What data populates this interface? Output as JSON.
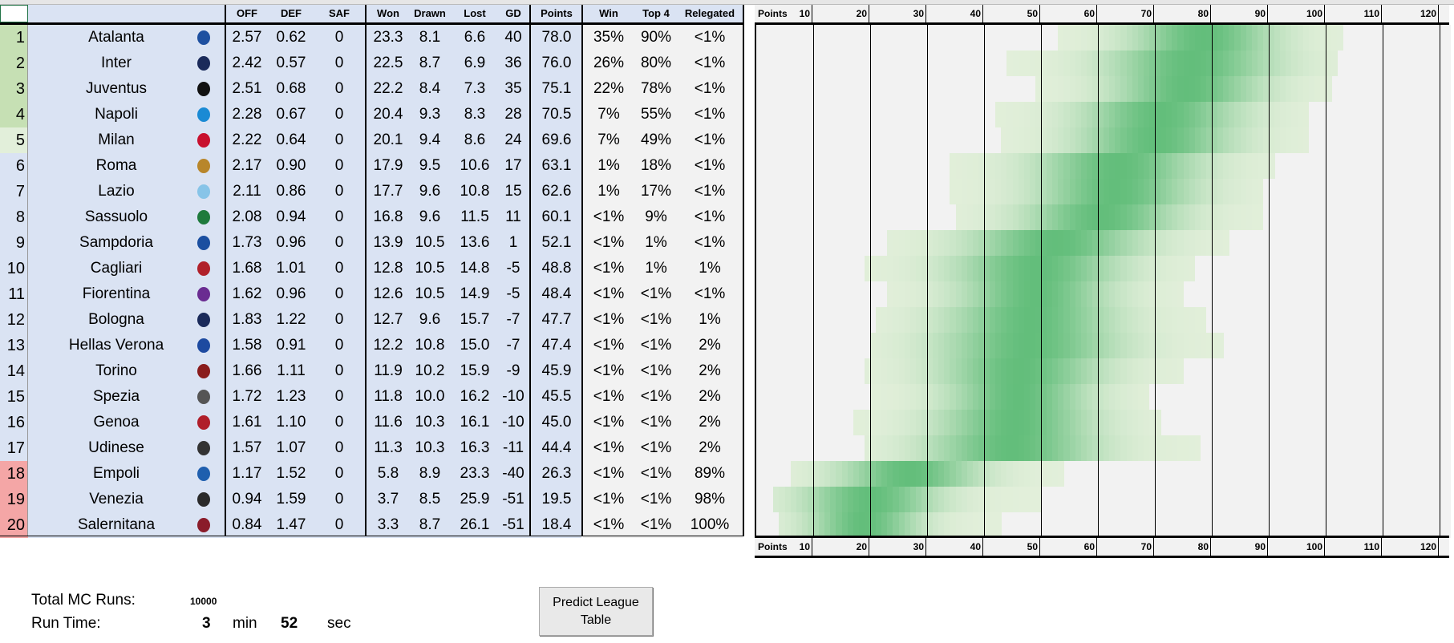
{
  "headers": {
    "off": "OFF",
    "def": "DEF",
    "saf": "SAF",
    "won": "Won",
    "drawn": "Drawn",
    "lost": "Lost",
    "gd": "GD",
    "points": "Points",
    "win": "Win",
    "top4": "Top 4",
    "relegated": "Relegated"
  },
  "teams": [
    {
      "rank": "1",
      "name": "Atalanta",
      "icon": "atalanta-crest-icon",
      "icon_color": "#1e50a0",
      "off": "2.57",
      "def": "0.62",
      "saf": "0",
      "won": "23.3",
      "drawn": "8.1",
      "lost": "6.6",
      "gd": "40",
      "points": "78.0",
      "win": "35%",
      "top4": "90%",
      "relegated": "<1%"
    },
    {
      "rank": "2",
      "name": "Inter",
      "icon": "inter-crest-icon",
      "icon_color": "#1a2a5a",
      "off": "2.42",
      "def": "0.57",
      "saf": "0",
      "won": "22.5",
      "drawn": "8.7",
      "lost": "6.9",
      "gd": "36",
      "points": "76.0",
      "win": "26%",
      "top4": "80%",
      "relegated": "<1%"
    },
    {
      "rank": "3",
      "name": "Juventus",
      "icon": "juventus-crest-icon",
      "icon_color": "#111111",
      "off": "2.51",
      "def": "0.68",
      "saf": "0",
      "won": "22.2",
      "drawn": "8.4",
      "lost": "7.3",
      "gd": "35",
      "points": "75.1",
      "win": "22%",
      "top4": "78%",
      "relegated": "<1%"
    },
    {
      "rank": "4",
      "name": "Napoli",
      "icon": "napoli-crest-icon",
      "icon_color": "#1a8ad4",
      "off": "2.28",
      "def": "0.67",
      "saf": "0",
      "won": "20.4",
      "drawn": "9.3",
      "lost": "8.3",
      "gd": "28",
      "points": "70.5",
      "win": "7%",
      "top4": "55%",
      "relegated": "<1%"
    },
    {
      "rank": "5",
      "name": "Milan",
      "icon": "milan-crest-icon",
      "icon_color": "#c8102e",
      "off": "2.22",
      "def": "0.64",
      "saf": "0",
      "won": "20.1",
      "drawn": "9.4",
      "lost": "8.6",
      "gd": "24",
      "points": "69.6",
      "win": "7%",
      "top4": "49%",
      "relegated": "<1%"
    },
    {
      "rank": "6",
      "name": "Roma",
      "icon": "roma-crest-icon",
      "icon_color": "#b8862b",
      "off": "2.17",
      "def": "0.90",
      "saf": "0",
      "won": "17.9",
      "drawn": "9.5",
      "lost": "10.6",
      "gd": "17",
      "points": "63.1",
      "win": "1%",
      "top4": "18%",
      "relegated": "<1%"
    },
    {
      "rank": "7",
      "name": "Lazio",
      "icon": "lazio-crest-icon",
      "icon_color": "#87c4e8",
      "off": "2.11",
      "def": "0.86",
      "saf": "0",
      "won": "17.7",
      "drawn": "9.6",
      "lost": "10.8",
      "gd": "15",
      "points": "62.6",
      "win": "1%",
      "top4": "17%",
      "relegated": "<1%"
    },
    {
      "rank": "8",
      "name": "Sassuolo",
      "icon": "sassuolo-crest-icon",
      "icon_color": "#1e7a3c",
      "off": "2.08",
      "def": "0.94",
      "saf": "0",
      "won": "16.8",
      "drawn": "9.6",
      "lost": "11.5",
      "gd": "11",
      "points": "60.1",
      "win": "<1%",
      "top4": "9%",
      "relegated": "<1%"
    },
    {
      "rank": "9",
      "name": "Sampdoria",
      "icon": "sampdoria-crest-icon",
      "icon_color": "#1b4fa0",
      "off": "1.73",
      "def": "0.96",
      "saf": "0",
      "won": "13.9",
      "drawn": "10.5",
      "lost": "13.6",
      "gd": "1",
      "points": "52.1",
      "win": "<1%",
      "top4": "1%",
      "relegated": "<1%"
    },
    {
      "rank": "10",
      "name": "Cagliari",
      "icon": "cagliari-crest-icon",
      "icon_color": "#b0202a",
      "off": "1.68",
      "def": "1.01",
      "saf": "0",
      "won": "12.8",
      "drawn": "10.5",
      "lost": "14.8",
      "gd": "-5",
      "points": "48.8",
      "win": "<1%",
      "top4": "1%",
      "relegated": "1%"
    },
    {
      "rank": "11",
      "name": "Fiorentina",
      "icon": "fiorentina-crest-icon",
      "icon_color": "#6a2c91",
      "off": "1.62",
      "def": "0.96",
      "saf": "0",
      "won": "12.6",
      "drawn": "10.5",
      "lost": "14.9",
      "gd": "-5",
      "points": "48.4",
      "win": "<1%",
      "top4": "<1%",
      "relegated": "<1%"
    },
    {
      "rank": "12",
      "name": "Bologna",
      "icon": "bologna-crest-icon",
      "icon_color": "#1a2a5a",
      "off": "1.83",
      "def": "1.22",
      "saf": "0",
      "won": "12.7",
      "drawn": "9.6",
      "lost": "15.7",
      "gd": "-7",
      "points": "47.7",
      "win": "<1%",
      "top4": "<1%",
      "relegated": "1%"
    },
    {
      "rank": "13",
      "name": "Hellas Verona",
      "icon": "verona-crest-icon",
      "icon_color": "#1d4aa0",
      "off": "1.58",
      "def": "0.91",
      "saf": "0",
      "won": "12.2",
      "drawn": "10.8",
      "lost": "15.0",
      "gd": "-7",
      "points": "47.4",
      "win": "<1%",
      "top4": "<1%",
      "relegated": "2%"
    },
    {
      "rank": "14",
      "name": "Torino",
      "icon": "torino-crest-icon",
      "icon_color": "#8a1c1c",
      "off": "1.66",
      "def": "1.11",
      "saf": "0",
      "won": "11.9",
      "drawn": "10.2",
      "lost": "15.9",
      "gd": "-9",
      "points": "45.9",
      "win": "<1%",
      "top4": "<1%",
      "relegated": "2%"
    },
    {
      "rank": "15",
      "name": "Spezia",
      "icon": "spezia-crest-icon",
      "icon_color": "#555555",
      "off": "1.72",
      "def": "1.23",
      "saf": "0",
      "won": "11.8",
      "drawn": "10.0",
      "lost": "16.2",
      "gd": "-10",
      "points": "45.5",
      "win": "<1%",
      "top4": "<1%",
      "relegated": "2%"
    },
    {
      "rank": "16",
      "name": "Genoa",
      "icon": "genoa-crest-icon",
      "icon_color": "#b01e2a",
      "off": "1.61",
      "def": "1.10",
      "saf": "0",
      "won": "11.6",
      "drawn": "10.3",
      "lost": "16.1",
      "gd": "-10",
      "points": "45.0",
      "win": "<1%",
      "top4": "<1%",
      "relegated": "2%"
    },
    {
      "rank": "17",
      "name": "Udinese",
      "icon": "udinese-crest-icon",
      "icon_color": "#333333",
      "off": "1.57",
      "def": "1.07",
      "saf": "0",
      "won": "11.3",
      "drawn": "10.3",
      "lost": "16.3",
      "gd": "-11",
      "points": "44.4",
      "win": "<1%",
      "top4": "<1%",
      "relegated": "2%"
    },
    {
      "rank": "18",
      "name": "Empoli",
      "icon": "empoli-crest-icon",
      "icon_color": "#1f5fae",
      "off": "1.17",
      "def": "1.52",
      "saf": "0",
      "won": "5.8",
      "drawn": "8.9",
      "lost": "23.3",
      "gd": "-40",
      "points": "26.3",
      "win": "<1%",
      "top4": "<1%",
      "relegated": "89%"
    },
    {
      "rank": "19",
      "name": "Venezia",
      "icon": "venezia-crest-icon",
      "icon_color": "#2a2a2a",
      "off": "0.94",
      "def": "1.59",
      "saf": "0",
      "won": "3.7",
      "drawn": "8.5",
      "lost": "25.9",
      "gd": "-51",
      "points": "19.5",
      "win": "<1%",
      "top4": "<1%",
      "relegated": "98%"
    },
    {
      "rank": "20",
      "name": "Salernitana",
      "icon": "salernitana-crest-icon",
      "icon_color": "#8a1c2a",
      "off": "0.84",
      "def": "1.47",
      "saf": "0",
      "won": "3.3",
      "drawn": "8.7",
      "lost": "26.1",
      "gd": "-51",
      "points": "18.4",
      "win": "<1%",
      "top4": "<1%",
      "relegated": "100%"
    }
  ],
  "rank_colors": {
    "top": "#c6e0b4",
    "fifth": "#e2efda",
    "mid": "#dae3f3",
    "relegation": "#f4a6a6"
  },
  "chart_data": {
    "type": "heatmap",
    "axis_label": "Points",
    "ticks": [
      "10",
      "20",
      "30",
      "40",
      "50",
      "60",
      "70",
      "80",
      "90",
      "100",
      "110",
      "120"
    ],
    "xlim": [
      0,
      120
    ],
    "color_low": "#e2efda",
    "color_high": "#63be7b",
    "rows": [
      {
        "team": "Atalanta",
        "mean": 78.0,
        "range": [
          53,
          102
        ]
      },
      {
        "team": "Inter",
        "mean": 76.0,
        "range": [
          44,
          101
        ]
      },
      {
        "team": "Juventus",
        "mean": 75.1,
        "range": [
          49,
          100
        ]
      },
      {
        "team": "Napoli",
        "mean": 70.5,
        "range": [
          42,
          96
        ]
      },
      {
        "team": "Milan",
        "mean": 69.6,
        "range": [
          43,
          96
        ]
      },
      {
        "team": "Roma",
        "mean": 63.1,
        "range": [
          34,
          90
        ]
      },
      {
        "team": "Lazio",
        "mean": 62.6,
        "range": [
          34,
          88
        ]
      },
      {
        "team": "Sassuolo",
        "mean": 60.1,
        "range": [
          35,
          88
        ]
      },
      {
        "team": "Sampdoria",
        "mean": 52.1,
        "range": [
          23,
          82
        ]
      },
      {
        "team": "Cagliari",
        "mean": 48.8,
        "range": [
          19,
          76
        ]
      },
      {
        "team": "Fiorentina",
        "mean": 48.4,
        "range": [
          23,
          74
        ]
      },
      {
        "team": "Bologna",
        "mean": 47.7,
        "range": [
          21,
          78
        ]
      },
      {
        "team": "Hellas Verona",
        "mean": 47.4,
        "range": [
          20,
          81
        ]
      },
      {
        "team": "Torino",
        "mean": 45.9,
        "range": [
          19,
          74
        ]
      },
      {
        "team": "Spezia",
        "mean": 45.5,
        "range": [
          20,
          68
        ]
      },
      {
        "team": "Genoa",
        "mean": 45.0,
        "range": [
          17,
          70
        ]
      },
      {
        "team": "Udinese",
        "mean": 44.4,
        "range": [
          19,
          77
        ]
      },
      {
        "team": "Empoli",
        "mean": 26.3,
        "range": [
          6,
          53
        ]
      },
      {
        "team": "Venezia",
        "mean": 19.5,
        "range": [
          3,
          49
        ]
      },
      {
        "team": "Salernitana",
        "mean": 18.4,
        "range": [
          4,
          42
        ]
      }
    ]
  },
  "footer": {
    "total_runs_label": "Total MC Runs:",
    "total_runs": "10000",
    "run_time_label": "Run Time:",
    "minutes": "3",
    "min_label": "min",
    "seconds": "52",
    "sec_label": "sec"
  },
  "predict_button": "Predict League Table"
}
